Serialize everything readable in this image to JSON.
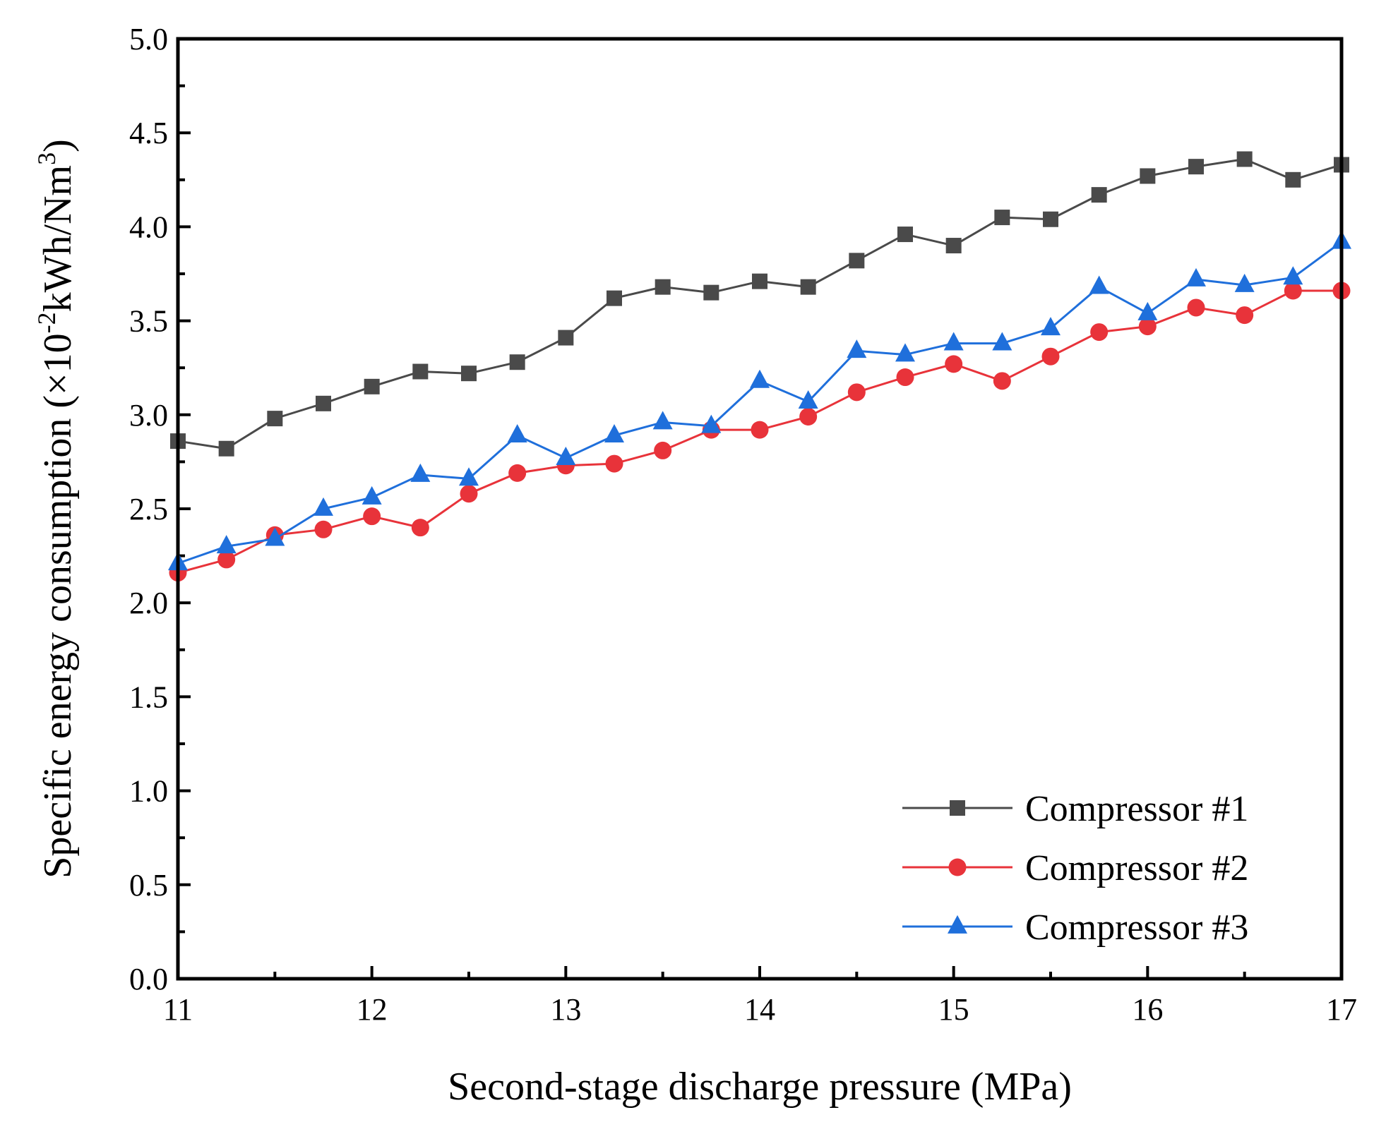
{
  "chart_data": {
    "type": "line",
    "xlabel": "Second-stage discharge pressure (MPa)",
    "ylabel": {
      "prefix": "Specific energy consumption (×10",
      "exp": "-2",
      "mid": "kWh/Nm",
      "exp2": "3",
      "suffix": ")"
    },
    "xlim": [
      11,
      17
    ],
    "ylim": [
      0.0,
      5.0
    ],
    "x_ticks": [
      "11",
      "12",
      "13",
      "14",
      "15",
      "16",
      "17"
    ],
    "y_ticks": [
      "0.0",
      "0.5",
      "1.0",
      "1.5",
      "2.0",
      "2.5",
      "3.0",
      "3.5",
      "4.0",
      "4.5",
      "5.0"
    ],
    "legend_position": "bottom-right",
    "x": [
      11.0,
      11.25,
      11.5,
      11.75,
      12.0,
      12.25,
      12.5,
      12.75,
      13.0,
      13.25,
      13.5,
      13.75,
      14.0,
      14.25,
      14.5,
      14.75,
      15.0,
      15.25,
      15.5,
      15.75,
      16.0,
      16.25,
      16.5,
      16.75,
      17.0
    ],
    "series": [
      {
        "name": "Compressor #1",
        "marker": "square",
        "color": "#4a4a4a",
        "values": [
          2.86,
          2.82,
          2.98,
          3.06,
          3.15,
          3.23,
          3.22,
          3.28,
          3.41,
          3.62,
          3.68,
          3.65,
          3.71,
          3.68,
          3.82,
          3.96,
          3.9,
          4.05,
          4.04,
          4.17,
          4.27,
          4.32,
          4.36,
          4.25,
          4.33
        ]
      },
      {
        "name": "Compressor #2",
        "marker": "circle",
        "color": "#e8333a",
        "values": [
          2.16,
          2.23,
          2.36,
          2.39,
          2.46,
          2.4,
          2.58,
          2.69,
          2.73,
          2.74,
          2.81,
          2.92,
          2.92,
          2.99,
          3.12,
          3.2,
          3.27,
          3.18,
          3.31,
          3.44,
          3.47,
          3.57,
          3.53,
          3.66,
          3.66
        ]
      },
      {
        "name": "Compressor #3",
        "marker": "triangle",
        "color": "#1f6fdb",
        "values": [
          2.21,
          2.3,
          2.34,
          2.5,
          2.56,
          2.68,
          2.66,
          2.89,
          2.77,
          2.89,
          2.96,
          2.94,
          3.18,
          3.07,
          3.34,
          3.32,
          3.38,
          3.38,
          3.46,
          3.68,
          3.54,
          3.72,
          3.69,
          3.73,
          3.92
        ]
      }
    ]
  }
}
